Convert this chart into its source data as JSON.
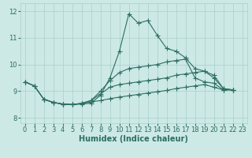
{
  "bg_color": "#cce9e6",
  "line_color": "#2d6e63",
  "grid_color": "#aacfcb",
  "xlabel": "Humidex (Indice chaleur)",
  "xlim": [
    -0.5,
    23.5
  ],
  "ylim": [
    7.8,
    12.3
  ],
  "xticks": [
    0,
    1,
    2,
    3,
    4,
    5,
    6,
    7,
    8,
    9,
    10,
    11,
    12,
    13,
    14,
    15,
    16,
    17,
    18,
    19,
    20,
    21,
    22,
    23
  ],
  "yticks": [
    8,
    9,
    10,
    11,
    12
  ],
  "series": [
    {
      "x": [
        0,
        1,
        2,
        3,
        4,
        5,
        6,
        7,
        8,
        9,
        10,
        11,
        12,
        13,
        14,
        15,
        16,
        17,
        18,
        19,
        20,
        21,
        22
      ],
      "y": [
        9.35,
        9.2,
        8.7,
        8.58,
        8.52,
        8.5,
        8.52,
        8.55,
        8.85,
        9.5,
        10.5,
        11.9,
        11.55,
        11.65,
        11.1,
        10.6,
        10.5,
        10.25,
        9.85,
        9.75,
        9.5,
        9.1,
        9.05
      ]
    },
    {
      "x": [
        0,
        1,
        2,
        3,
        4,
        5,
        6,
        7,
        8,
        9,
        10,
        11,
        12,
        13,
        14,
        15,
        16,
        17,
        18,
        19,
        20,
        21,
        22
      ],
      "y": [
        9.35,
        9.2,
        8.7,
        8.58,
        8.52,
        8.5,
        8.55,
        8.65,
        8.9,
        9.15,
        9.25,
        9.3,
        9.35,
        9.4,
        9.45,
        9.5,
        9.6,
        9.65,
        9.7,
        9.75,
        9.6,
        9.1,
        9.05
      ]
    },
    {
      "x": [
        0,
        1,
        2,
        3,
        4,
        5,
        6,
        7,
        8,
        9,
        10,
        11,
        12,
        13,
        14,
        15,
        16,
        17,
        18,
        19,
        20,
        21,
        22
      ],
      "y": [
        9.35,
        9.2,
        8.7,
        8.58,
        8.52,
        8.5,
        8.54,
        8.6,
        8.65,
        8.72,
        8.78,
        8.83,
        8.88,
        8.93,
        8.98,
        9.03,
        9.1,
        9.15,
        9.2,
        9.25,
        9.15,
        9.05,
        9.05
      ]
    },
    {
      "x": [
        2,
        3,
        4,
        5,
        6,
        7,
        8,
        9,
        10,
        11,
        12,
        13,
        14,
        15,
        16,
        17,
        18,
        19,
        20,
        21,
        22
      ],
      "y": [
        8.7,
        8.58,
        8.52,
        8.5,
        8.54,
        8.65,
        9.0,
        9.4,
        9.7,
        9.85,
        9.9,
        9.95,
        10.0,
        10.1,
        10.15,
        10.2,
        9.5,
        9.35,
        9.3,
        9.05,
        9.05
      ]
    }
  ],
  "fontsize_label": 7,
  "tick_fontsize": 6,
  "linewidth": 0.8,
  "markersize": 2.0
}
